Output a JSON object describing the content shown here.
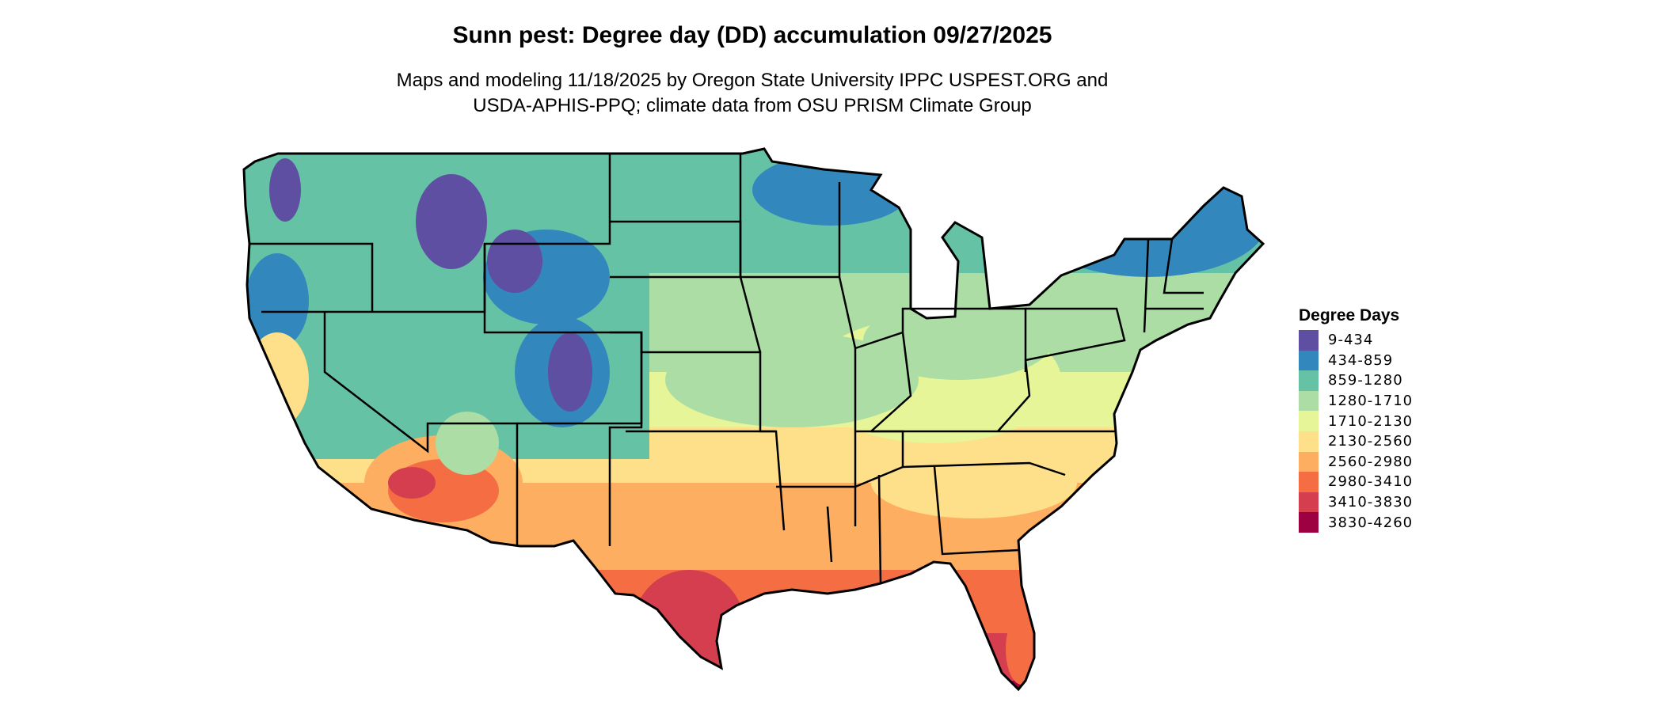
{
  "header": {
    "title": "Sunn pest: Degree day (DD) accumulation 09/27/2025",
    "subtitle_line1": "Maps and modeling 11/18/2025 by Oregon State University IPPC USPEST.ORG and",
    "subtitle_line2": "USDA-APHIS-PPQ; climate data from OSU PRISM Climate Group"
  },
  "chart_data": {
    "type": "heatmap",
    "title": "Sunn pest: Degree day (DD) accumulation 09/27/2025",
    "region": "Contiguous United States",
    "legend_title": "Degree Days",
    "legend_placement": "right",
    "legend": [
      {
        "label": "9-434",
        "color": "#5e4fa2"
      },
      {
        "label": "434-859",
        "color": "#3288bd"
      },
      {
        "label": "859-1280",
        "color": "#66c2a5"
      },
      {
        "label": "1280-1710",
        "color": "#abdda4"
      },
      {
        "label": "1710-2130",
        "color": "#e6f598"
      },
      {
        "label": "2130-2560",
        "color": "#fee08b"
      },
      {
        "label": "2560-2980",
        "color": "#fdae61"
      },
      {
        "label": "2980-3410",
        "color": "#f46d43"
      },
      {
        "label": "3410-3830",
        "color": "#d53e4f"
      },
      {
        "label": "3830-4260",
        "color": "#9e0142"
      }
    ]
  }
}
